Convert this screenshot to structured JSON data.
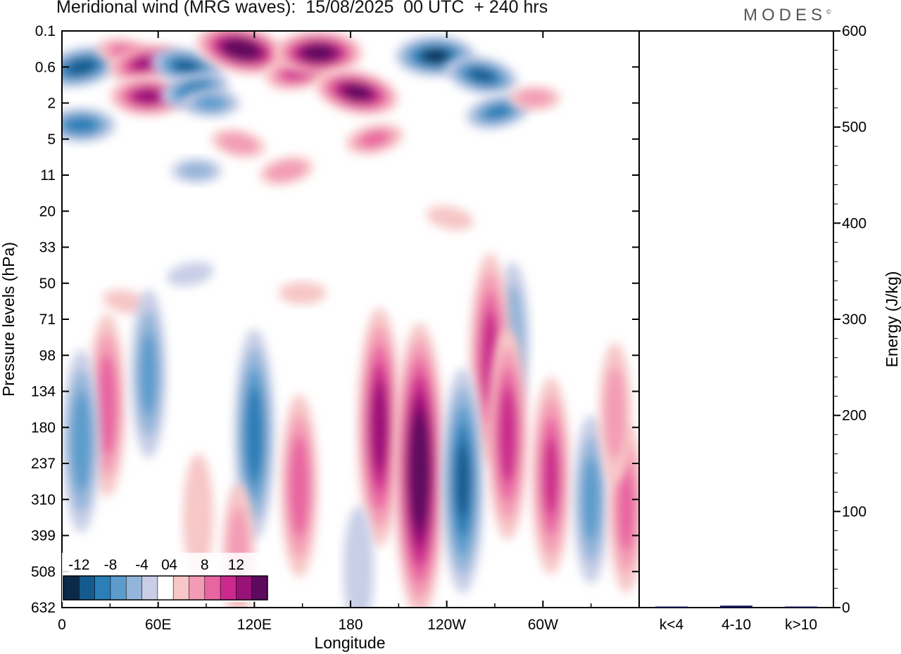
{
  "title": "Meridional wind (MRG waves):  15/08/2025  00 UTC  + 240 hrs",
  "brand": "MODES",
  "brand_mark": "©",
  "chart_data": [
    {
      "type": "heatmap",
      "name": "meridional-wind-contour",
      "xlabel": "Longitude",
      "ylabel": "Pressure levels (hPa)",
      "x_ticks": [
        "0",
        "60E",
        "120E",
        "180",
        "120W",
        "60W"
      ],
      "x_tick_degrees": [
        0,
        60,
        120,
        180,
        240,
        300
      ],
      "xlim": [
        0,
        360
      ],
      "y_ticks": [
        "0.1",
        "0.6",
        "2",
        "5",
        "11",
        "20",
        "33",
        "50",
        "71",
        "98",
        "134",
        "180",
        "237",
        "310",
        "399",
        "508",
        "632"
      ],
      "colorbar": {
        "labels": [
          "-12",
          "-8",
          "-4",
          "0",
          "4",
          "8",
          "12"
        ],
        "levels": [
          -14,
          -12,
          -10,
          -8,
          -6,
          -4,
          -2,
          2,
          4,
          6,
          8,
          10,
          12,
          14
        ],
        "colors": [
          "#0b2a4a",
          "#155a8e",
          "#2b7eb6",
          "#5b9ccc",
          "#93b5d9",
          "#c8cee6",
          "#ffffff",
          "#f7c6c6",
          "#f39bb5",
          "#e865a1",
          "#cb2a8c",
          "#9a1178",
          "#5d0a5e"
        ]
      },
      "features": [
        {
          "lon": 12,
          "level": 0.6,
          "value": -11
        },
        {
          "lon": 12,
          "level": 3.5,
          "value": -9
        },
        {
          "lon": 40,
          "level": 0.3,
          "value": 6
        },
        {
          "lon": 52,
          "level": 0.5,
          "value": 10
        },
        {
          "lon": 54,
          "level": 1.6,
          "value": 11
        },
        {
          "lon": 78,
          "level": 0.6,
          "value": -10
        },
        {
          "lon": 83,
          "level": 1.3,
          "value": -9
        },
        {
          "lon": 93,
          "level": 2.0,
          "value": -6
        },
        {
          "lon": 112,
          "level": 0.25,
          "value": 15
        },
        {
          "lon": 148,
          "level": 0.7,
          "value": 9
        },
        {
          "lon": 160,
          "level": 0.3,
          "value": 14
        },
        {
          "lon": 184,
          "level": 1.4,
          "value": 13
        },
        {
          "lon": 195,
          "level": 5.0,
          "value": 6
        },
        {
          "lon": 233,
          "level": 0.35,
          "value": -12
        },
        {
          "lon": 262,
          "level": 0.8,
          "value": -10
        },
        {
          "lon": 272,
          "level": 2.5,
          "value": -8
        },
        {
          "lon": 295,
          "level": 1.7,
          "value": 4
        },
        {
          "lon": 110,
          "level": 5.5,
          "value": 5
        },
        {
          "lon": 140,
          "level": 10,
          "value": 5
        },
        {
          "lon": 84,
          "level": 10,
          "value": -4
        },
        {
          "lon": 40,
          "level": 60,
          "value": 3
        },
        {
          "lon": 80,
          "level": 45,
          "value": -3
        },
        {
          "lon": 150,
          "level": 55,
          "value": 3
        },
        {
          "lon": 242,
          "level": 22,
          "value": 3
        },
        {
          "lon": 281,
          "level": 85,
          "value": -5
        },
        {
          "lon": 267,
          "level": 101,
          "value": 9
        },
        {
          "lon": 28,
          "level": 150,
          "value": 7
        },
        {
          "lon": 12,
          "level": 200,
          "value": -7
        },
        {
          "lon": 54,
          "level": 115,
          "value": -6
        },
        {
          "lon": 120,
          "level": 190,
          "value": -9
        },
        {
          "lon": 148,
          "level": 280,
          "value": 7
        },
        {
          "lon": 198,
          "level": 180,
          "value": 11
        },
        {
          "lon": 223,
          "level": 250,
          "value": 15
        },
        {
          "lon": 250,
          "level": 270,
          "value": -10
        },
        {
          "lon": 278,
          "level": 190,
          "value": 9
        },
        {
          "lon": 305,
          "level": 260,
          "value": 8
        },
        {
          "lon": 330,
          "level": 310,
          "value": -6
        },
        {
          "lon": 352,
          "level": 330,
          "value": 6
        },
        {
          "lon": 345,
          "level": 160,
          "value": 4
        },
        {
          "lon": 185,
          "level": 500,
          "value": -3
        },
        {
          "lon": 110,
          "level": 450,
          "value": 4
        },
        {
          "lon": 85,
          "level": 350,
          "value": 3
        }
      ]
    },
    {
      "type": "bar",
      "name": "energy-by-wavenumber",
      "categories": [
        "k<4",
        "4-10",
        "k>10"
      ],
      "values": [
        0,
        2,
        0
      ],
      "ylabel": "Energy (J/kg)",
      "ylim": [
        0,
        600
      ],
      "y_ticks": [
        "0",
        "100",
        "200",
        "300",
        "400",
        "500",
        "600"
      ],
      "bar_color": "#101060"
    }
  ]
}
